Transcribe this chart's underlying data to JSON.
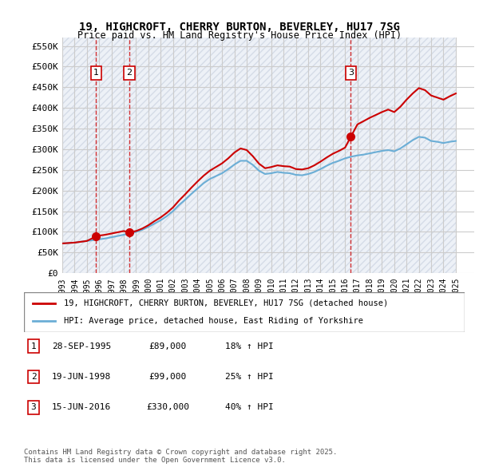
{
  "title_line1": "19, HIGHCROFT, CHERRY BURTON, BEVERLEY, HU17 7SG",
  "title_line2": "Price paid vs. HM Land Registry's House Price Index (HPI)",
  "ylabel": "",
  "xlabel": "",
  "yticks": [
    0,
    50000,
    100000,
    150000,
    200000,
    250000,
    300000,
    350000,
    400000,
    450000,
    500000,
    550000
  ],
  "ytick_labels": [
    "£0",
    "£50K",
    "£100K",
    "£150K",
    "£200K",
    "£250K",
    "£300K",
    "£350K",
    "£400K",
    "£450K",
    "£500K",
    "£550K"
  ],
  "ylim": [
    0,
    570000
  ],
  "xlim_start": 1993.0,
  "xlim_end": 2026.5,
  "sale_dates": [
    1995.75,
    1998.46,
    2016.46
  ],
  "sale_prices": [
    89000,
    99000,
    330000
  ],
  "sale_labels": [
    "1",
    "2",
    "3"
  ],
  "hpi_line_color": "#6baed6",
  "price_line_color": "#cc0000",
  "vline_color": "#cc0000",
  "background_hatch_color": "#d0d8e8",
  "grid_color": "#cccccc",
  "legend_label1": "19, HIGHCROFT, CHERRY BURTON, BEVERLEY, HU17 7SG (detached house)",
  "legend_label2": "HPI: Average price, detached house, East Riding of Yorkshire",
  "table_entries": [
    {
      "num": "1",
      "date": "28-SEP-1995",
      "price": "£89,000",
      "hpi": "18% ↑ HPI"
    },
    {
      "num": "2",
      "date": "19-JUN-1998",
      "price": "£99,000",
      "hpi": "25% ↑ HPI"
    },
    {
      "num": "3",
      "date": "15-JUN-2016",
      "price": "£330,000",
      "hpi": "40% ↑ HPI"
    }
  ],
  "footnote": "Contains HM Land Registry data © Crown copyright and database right 2025.\nThis data is licensed under the Open Government Licence v3.0.",
  "hpi_years": [
    1993,
    1993.5,
    1994,
    1994.5,
    1995,
    1995.5,
    1996,
    1996.5,
    1997,
    1997.5,
    1998,
    1998.5,
    1999,
    1999.5,
    2000,
    2000.5,
    2001,
    2001.5,
    2002,
    2002.5,
    2003,
    2003.5,
    2004,
    2004.5,
    2005,
    2005.5,
    2006,
    2006.5,
    2007,
    2007.5,
    2008,
    2008.5,
    2009,
    2009.5,
    2010,
    2010.5,
    2011,
    2011.5,
    2012,
    2012.5,
    2013,
    2013.5,
    2014,
    2014.5,
    2015,
    2015.5,
    2016,
    2016.5,
    2017,
    2017.5,
    2018,
    2018.5,
    2019,
    2019.5,
    2020,
    2020.5,
    2021,
    2021.5,
    2022,
    2022.5,
    2023,
    2023.5,
    2024,
    2024.5,
    2025
  ],
  "hpi_values": [
    72000,
    73000,
    74000,
    76000,
    78000,
    80000,
    82000,
    84000,
    87000,
    90000,
    93000,
    96000,
    100000,
    105000,
    112000,
    120000,
    128000,
    138000,
    150000,
    165000,
    178000,
    192000,
    205000,
    218000,
    228000,
    235000,
    242000,
    252000,
    263000,
    272000,
    272000,
    262000,
    248000,
    240000,
    242000,
    245000,
    243000,
    242000,
    238000,
    237000,
    240000,
    245000,
    252000,
    260000,
    267000,
    272000,
    278000,
    282000,
    285000,
    287000,
    290000,
    293000,
    296000,
    298000,
    295000,
    302000,
    312000,
    322000,
    330000,
    328000,
    320000,
    318000,
    315000,
    318000,
    320000
  ],
  "price_years": [
    1993,
    1993.5,
    1994,
    1994.5,
    1995,
    1995.75,
    1996,
    1996.5,
    1997,
    1997.5,
    1998,
    1998.46,
    1999,
    1999.5,
    2000,
    2000.5,
    2001,
    2001.5,
    2002,
    2002.5,
    2003,
    2003.5,
    2004,
    2004.5,
    2005,
    2005.5,
    2006,
    2006.5,
    2007,
    2007.5,
    2008,
    2008.5,
    2009,
    2009.5,
    2010,
    2010.5,
    2011,
    2011.5,
    2012,
    2012.5,
    2013,
    2013.5,
    2014,
    2014.5,
    2015,
    2015.5,
    2016,
    2016.46,
    2017,
    2017.5,
    2018,
    2018.5,
    2019,
    2019.5,
    2020,
    2020.5,
    2021,
    2021.5,
    2022,
    2022.5,
    2023,
    2023.5,
    2024,
    2024.5,
    2025
  ],
  "price_values": [
    72000,
    73000,
    74000,
    76000,
    78000,
    89000,
    91000,
    93000,
    96000,
    99000,
    102000,
    99000,
    102000,
    108000,
    116000,
    126000,
    135000,
    146000,
    159000,
    176000,
    191000,
    207000,
    222000,
    236000,
    248000,
    257000,
    266000,
    278000,
    292000,
    302000,
    298000,
    283000,
    265000,
    254000,
    257000,
    261000,
    259000,
    258000,
    252000,
    251000,
    254000,
    261000,
    270000,
    280000,
    289000,
    296000,
    304000,
    330000,
    360000,
    368000,
    376000,
    383000,
    390000,
    396000,
    390000,
    403000,
    420000,
    435000,
    448000,
    443000,
    430000,
    425000,
    420000,
    428000,
    435000
  ]
}
